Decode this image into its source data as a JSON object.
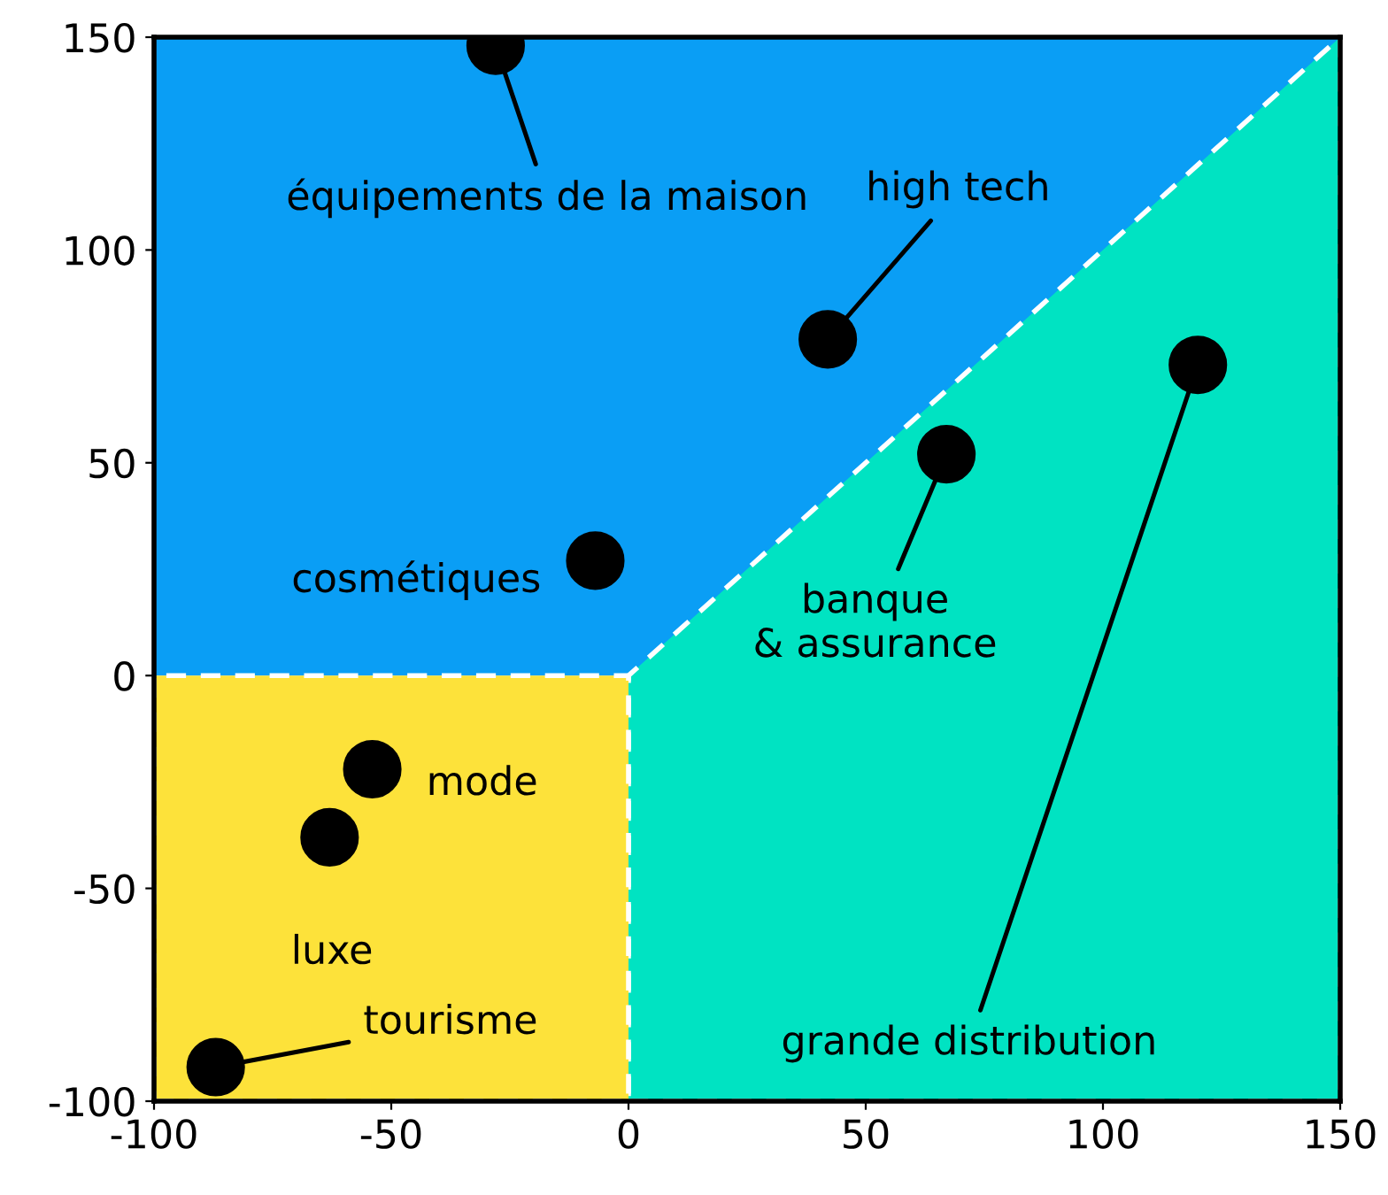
{
  "chart_data": {
    "type": "scatter",
    "x": [
      -28,
      42,
      67,
      120,
      -7,
      -54,
      -63,
      -87
    ],
    "values": [
      148,
      79,
      52,
      73,
      27,
      -22,
      -38,
      -92
    ],
    "color": "#000000",
    "marker": "circle",
    "xlim": [
      -100,
      150
    ],
    "ylim": [
      -100,
      150
    ],
    "xticks": [
      -100,
      -50,
      0,
      50,
      100,
      150
    ],
    "yticks": [
      -100,
      -50,
      0,
      50,
      100,
      150
    ],
    "grid": false,
    "bands": [
      {
        "axis": "y",
        "from": 0,
        "to": 150,
        "color": "#0a9ef5"
      }
    ],
    "annotations": [
      {
        "text": "équipements de la maison",
        "x": -28,
        "y": 148
      },
      {
        "text": "high tech",
        "x": 42,
        "y": 79
      },
      {
        "text": "banque\n& assurance",
        "x": 67,
        "y": 52
      },
      {
        "text": "grande distribution",
        "x": 120,
        "y": 73
      },
      {
        "text": "cosmétiques",
        "x": -7,
        "y": 27
      },
      {
        "text": "mode",
        "x": -54,
        "y": -22
      },
      {
        "text": "luxe",
        "x": -63,
        "y": -38
      },
      {
        "text": "tourisme",
        "x": -87,
        "y": -92
      }
    ]
  }
}
